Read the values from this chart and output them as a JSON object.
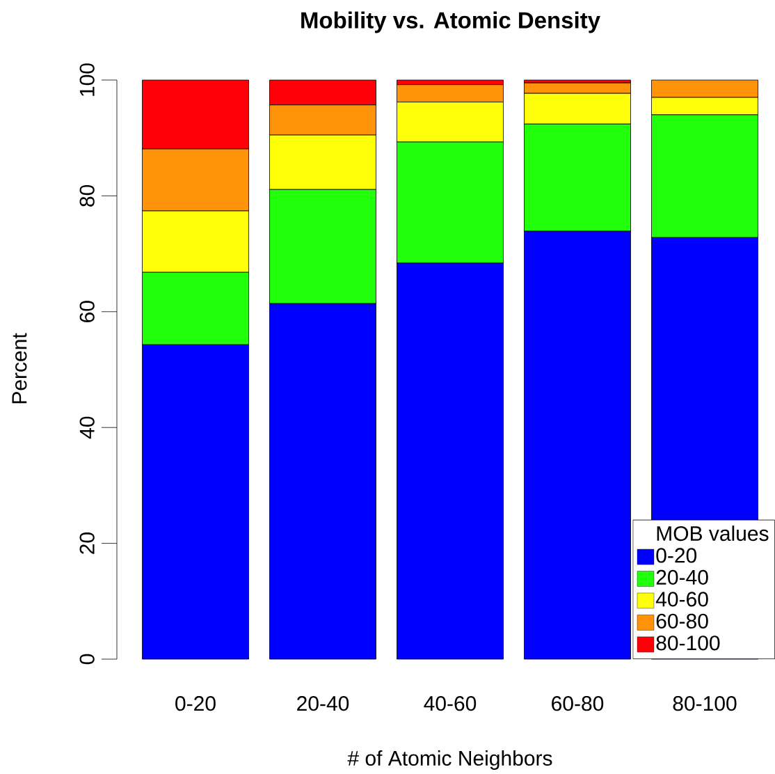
{
  "chart_data": {
    "type": "bar",
    "title": "Mobility vs. Atomic Density",
    "xlabel": "# of Atomic Neighbors",
    "ylabel": "Percent",
    "legend_title": "MOB values",
    "categories": [
      "0-20",
      "20-40",
      "40-60",
      "60-80",
      "80-100"
    ],
    "stacked": true,
    "ylim": [
      0,
      100
    ],
    "yticks": [
      0,
      20,
      40,
      60,
      80,
      100
    ],
    "legend": "bottom right",
    "series": [
      {
        "name": "0-20",
        "color": "#0000ff",
        "values": [
          54.3,
          61.4,
          68.4,
          73.9,
          72.8
        ]
      },
      {
        "name": "20-40",
        "color": "#22ff0a",
        "values": [
          12.5,
          19.7,
          20.9,
          18.5,
          21.2
        ]
      },
      {
        "name": "40-60",
        "color": "#ffff0a",
        "values": [
          10.6,
          9.4,
          6.9,
          5.3,
          3.0
        ]
      },
      {
        "name": "60-80",
        "color": "#ff930a",
        "values": [
          10.7,
          5.2,
          3.0,
          1.8,
          3.0
        ]
      },
      {
        "name": "80-100",
        "color": "#ff0008",
        "values": [
          11.9,
          4.3,
          0.8,
          0.5,
          0
        ]
      }
    ]
  }
}
